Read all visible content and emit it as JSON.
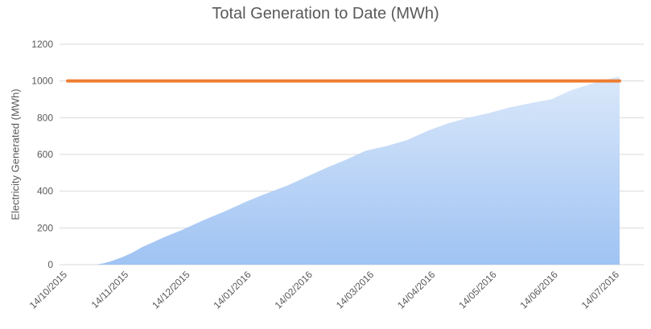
{
  "chart_data": {
    "type": "area",
    "title": "Total Generation to Date (MWh)",
    "xlabel": "",
    "ylabel": "Electricity Generated (MWh)",
    "ylim": [
      0,
      1200
    ],
    "y_ticks": [
      "0",
      "200",
      "400",
      "600",
      "800",
      "1000",
      "1200"
    ],
    "x_ticks": [
      "14/10/2015",
      "14/11/2015",
      "14/12/2015",
      "14/01/2016",
      "14/02/2016",
      "14/03/2016",
      "14/04/2016",
      "14/05/2016",
      "14/06/2016",
      "14/07/2016"
    ],
    "xlim": [
      "2015-10-14",
      "2016-07-14"
    ],
    "grid": "horizontal",
    "series": [
      {
        "type": "area",
        "color_top": "#dae8fa",
        "color_bottom": "#9fc3f3",
        "points": [
          [
            "2015-10-28",
            0
          ],
          [
            "2015-11-01",
            8
          ],
          [
            "2015-11-05",
            20
          ],
          [
            "2015-11-10",
            40
          ],
          [
            "2015-11-15",
            65
          ],
          [
            "2015-11-20",
            95
          ],
          [
            "2015-11-25",
            120
          ],
          [
            "2015-12-01",
            150
          ],
          [
            "2015-12-10",
            190
          ],
          [
            "2015-12-20",
            240
          ],
          [
            "2015-12-31",
            290
          ],
          [
            "2016-01-10",
            340
          ],
          [
            "2016-01-20",
            385
          ],
          [
            "2016-01-31",
            430
          ],
          [
            "2016-02-10",
            480
          ],
          [
            "2016-02-20",
            530
          ],
          [
            "2016-02-29",
            570
          ],
          [
            "2016-03-10",
            620
          ],
          [
            "2016-03-20",
            645
          ],
          [
            "2016-03-31",
            680
          ],
          [
            "2016-04-10",
            730
          ],
          [
            "2016-04-20",
            770
          ],
          [
            "2016-04-30",
            800
          ],
          [
            "2016-05-10",
            825
          ],
          [
            "2016-05-20",
            855
          ],
          [
            "2016-05-31",
            880
          ],
          [
            "2016-06-10",
            900
          ],
          [
            "2016-06-20",
            950
          ],
          [
            "2016-06-30",
            985
          ],
          [
            "2016-07-10",
            1015
          ],
          [
            "2016-07-14",
            1025
          ]
        ]
      },
      {
        "type": "line",
        "color": "#ed7d31",
        "points": [
          [
            "2015-10-14",
            1000
          ],
          [
            "2016-07-14",
            1000
          ]
        ]
      }
    ]
  }
}
